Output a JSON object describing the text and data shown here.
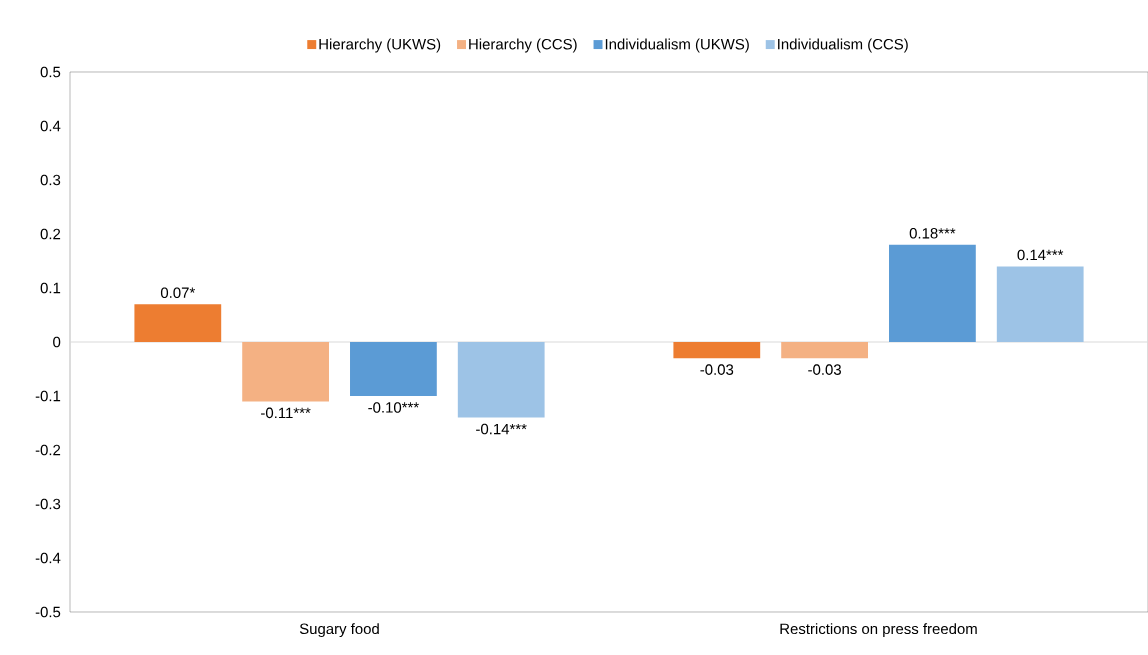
{
  "chart_data": {
    "type": "bar",
    "categories": [
      "Sugary food",
      "Restrictions on press freedom"
    ],
    "series": [
      {
        "name": "Hierarchy (UKWS)",
        "color": "#ed7d31",
        "values": [
          0.07,
          -0.03
        ],
        "value_labels": [
          "0.07*",
          "-0.03"
        ]
      },
      {
        "name": "Hierarchy (CCS)",
        "color": "#f4b183",
        "values": [
          -0.11,
          -0.03
        ],
        "value_labels": [
          "-0.11***",
          "-0.03"
        ]
      },
      {
        "name": "Individualism (UKWS)",
        "color": "#5b9bd5",
        "values": [
          -0.1,
          0.18
        ],
        "value_labels": [
          "-0.10***",
          "0.18***"
        ]
      },
      {
        "name": "Individualism (CCS)",
        "color": "#9dc3e6",
        "values": [
          -0.14,
          0.14
        ],
        "value_labels": [
          "-0.14***",
          "0.14***"
        ]
      }
    ],
    "ylim": [
      -0.5,
      0.5
    ],
    "yticks": [
      -0.5,
      -0.4,
      -0.3,
      -0.2,
      -0.1,
      0,
      0.1,
      0.2,
      0.3,
      0.4,
      0.5
    ],
    "grid": false,
    "ref_lines": [
      {
        "axis": "y",
        "value": 0,
        "color": "#d9d9d9"
      }
    ],
    "legend": "top"
  }
}
